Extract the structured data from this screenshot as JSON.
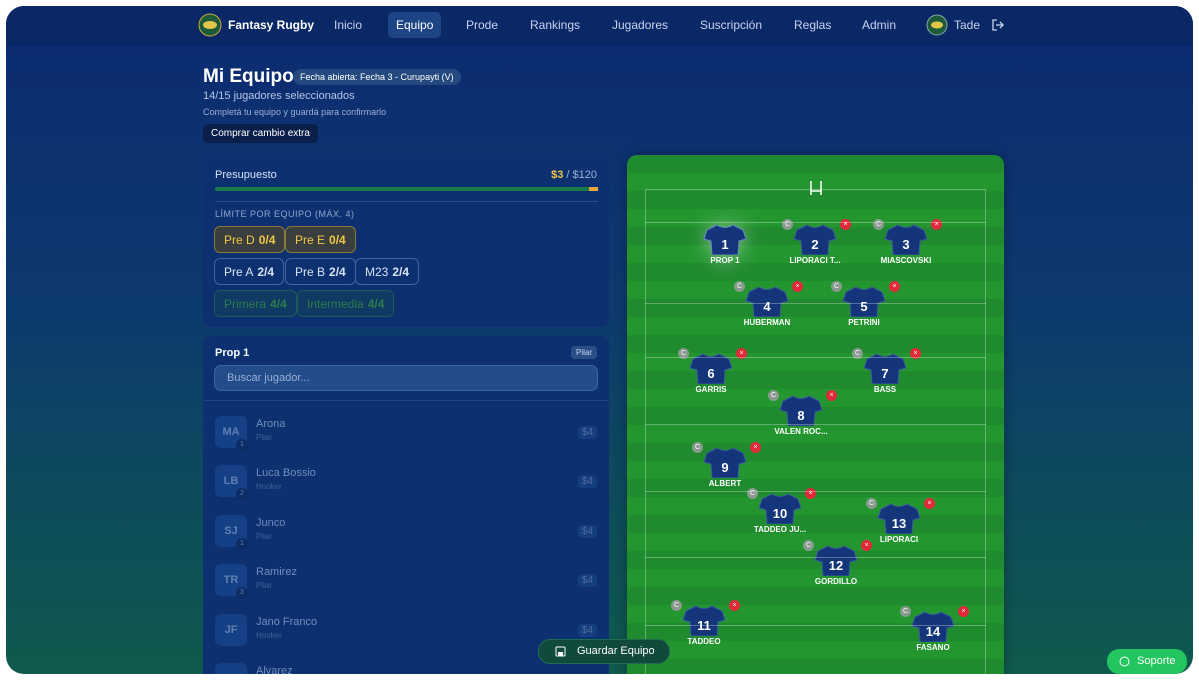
{
  "nav": {
    "brand": "Fantasy Rugby",
    "items": [
      "Inicio",
      "Equipo",
      "Prode",
      "Rankings",
      "Jugadores",
      "Suscripción",
      "Reglas",
      "Admin"
    ],
    "active": 1,
    "user": "Tade"
  },
  "header": {
    "title": "Mi Equipo",
    "badge": "Fecha abierta: Fecha 3 - Curupayti (V)",
    "count": "14/15 jugadores seleccionados",
    "hint": "Completá tu equipo y guardá para confirmarlo",
    "extra_button": "Comprar cambio extra"
  },
  "budget": {
    "label": "Presupuesto",
    "remaining": "$3",
    "total": "/ $120"
  },
  "limits": {
    "title": "LÍMITE POR EQUIPO (MÁX. 4)",
    "teams": [
      {
        "name": "Pre D",
        "count": "0/4",
        "state": "warn"
      },
      {
        "name": "Pre E",
        "count": "0/4",
        "state": "warn"
      },
      {
        "name": "Pre A",
        "count": "2/4",
        "state": "normal"
      },
      {
        "name": "Pre B",
        "count": "2/4",
        "state": "normal"
      },
      {
        "name": "M23",
        "count": "2/4",
        "state": "normal"
      },
      {
        "name": "Primera",
        "count": "4/4",
        "state": "full"
      },
      {
        "name": "Intermedia",
        "count": "4/4",
        "state": "full"
      }
    ]
  },
  "selector": {
    "title": "Prop 1",
    "tag": "Pilar",
    "search_placeholder": "Buscar jugador...",
    "players": [
      {
        "initials": "MA",
        "number": "1",
        "name": "Arona",
        "position": "Pilar",
        "price": "$4"
      },
      {
        "initials": "LB",
        "number": "2",
        "name": "Luca Bossio",
        "position": "Hooker",
        "price": "$4"
      },
      {
        "initials": "SJ",
        "number": "1",
        "name": "Junco",
        "position": "Pilar",
        "price": "$4"
      },
      {
        "initials": "TR",
        "number": "3",
        "name": "Ramirez",
        "position": "Pilar",
        "price": "$4"
      },
      {
        "initials": "JF",
        "number": "",
        "name": "Jano Franco",
        "position": "Hooker",
        "price": "$4"
      },
      {
        "initials": "",
        "number": "",
        "name": "Alvarez",
        "position": "",
        "price": ""
      }
    ]
  },
  "field": {
    "captain_label": "C",
    "remove_label": "×",
    "players": [
      {
        "number": "1",
        "name": "PROP 1",
        "empty": true
      },
      {
        "number": "2",
        "name": "LIPORACI T..."
      },
      {
        "number": "3",
        "name": "MIASCOVSKI"
      },
      {
        "number": "4",
        "name": "HUBERMAN"
      },
      {
        "number": "5",
        "name": "PETRINI"
      },
      {
        "number": "6",
        "name": "GARRIS"
      },
      {
        "number": "7",
        "name": "BASS"
      },
      {
        "number": "8",
        "name": "VALEN ROC..."
      },
      {
        "number": "9",
        "name": "ALBERT"
      },
      {
        "number": "10",
        "name": "TADDEO JU..."
      },
      {
        "number": "13",
        "name": "LIPORACI"
      },
      {
        "number": "12",
        "name": "GORDILLO"
      },
      {
        "number": "11",
        "name": "TADDEO"
      },
      {
        "number": "14",
        "name": "FASANO"
      }
    ]
  },
  "save_button": "Guardar Equipo",
  "support_button": "Soporte"
}
